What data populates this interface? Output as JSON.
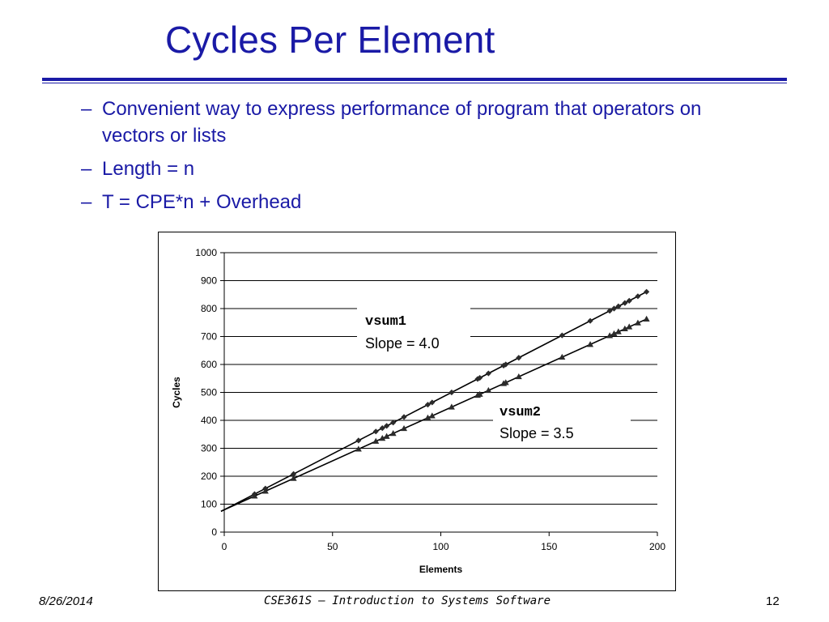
{
  "slide": {
    "title": "Cycles Per Element",
    "bullets": [
      "Convenient way to express performance of program that operators on vectors or lists",
      "Length = n",
      "T = CPE*n + Overhead"
    ],
    "bullet_marker": "–"
  },
  "chart_data": {
    "type": "scatter",
    "title": "",
    "xlabel": "Elements",
    "ylabel": "Cycles",
    "xlim": [
      0,
      200
    ],
    "ylim": [
      0,
      1000
    ],
    "xticks": [
      "0",
      "50",
      "100",
      "150",
      "200"
    ],
    "yticks": [
      "0",
      "100",
      "200",
      "300",
      "400",
      "500",
      "600",
      "700",
      "800",
      "900",
      "1000"
    ],
    "grid": "horizontal",
    "series": [
      {
        "name": "vsum1",
        "marker": "diamond",
        "fit": {
          "slope": 4.0,
          "intercept": 80
        },
        "x": [
          14,
          19,
          32,
          62,
          70,
          73,
          75,
          78,
          83,
          94,
          96,
          105,
          117,
          118,
          122,
          129,
          130,
          136,
          156,
          169,
          178,
          180,
          182,
          185,
          187,
          191,
          195
        ],
        "y": [
          136,
          156,
          208,
          328,
          360,
          372,
          380,
          392,
          412,
          456,
          464,
          500,
          548,
          552,
          568,
          596,
          600,
          624,
          704,
          756,
          792,
          800,
          808,
          820,
          828,
          844,
          860
        ]
      },
      {
        "name": "vsum2",
        "marker": "triangle",
        "fit": {
          "slope": 3.5,
          "intercept": 80
        },
        "x": [
          14,
          19,
          32,
          62,
          70,
          73,
          75,
          78,
          83,
          94,
          96,
          105,
          117,
          118,
          122,
          129,
          130,
          136,
          156,
          169,
          178,
          180,
          182,
          185,
          187,
          191,
          195
        ],
        "y": [
          129,
          146.5,
          192,
          297,
          325,
          335.5,
          342.5,
          353,
          370.5,
          409,
          416,
          447.5,
          489.5,
          493,
          507,
          531.5,
          535,
          556,
          626,
          671.5,
          703,
          710,
          717,
          727.5,
          734.5,
          748.5,
          762.5
        ]
      }
    ],
    "annotations": [
      {
        "series": "vsum1",
        "name": "vsum1",
        "text": "Slope = 4.0"
      },
      {
        "series": "vsum2",
        "name": "vsum2",
        "text": "Slope = 3.5"
      }
    ]
  },
  "footer": {
    "date": "8/26/2014",
    "course": "CSE361S – Introduction to Systems Software",
    "page": "12"
  }
}
